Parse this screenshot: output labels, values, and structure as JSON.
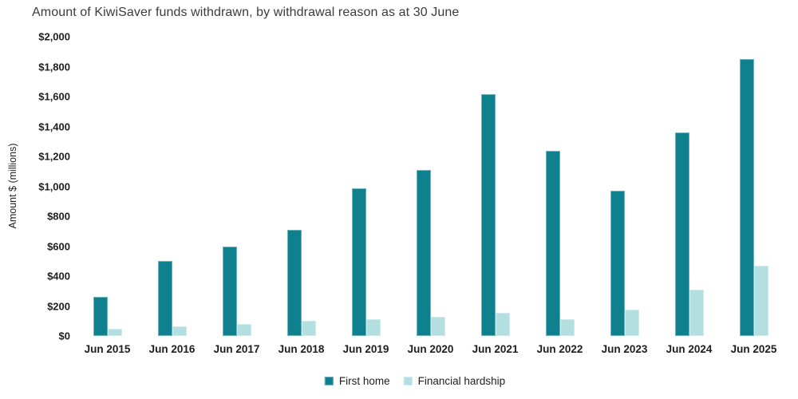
{
  "title": "Amount of KiwiSaver funds withdrawn, by withdrawal reason as at 30 June",
  "colors": {
    "background": "#ffffff",
    "first_home": "#0f818e",
    "first_home_border": "#6db5bf",
    "financial_hardship": "#b4dfe0",
    "financial_hardship_border": "#cfebeb",
    "text": "#1e1e1e",
    "title_text": "#3c3c3c"
  },
  "chart_data": {
    "type": "bar",
    "title": "Amount of KiwiSaver funds withdrawn, by withdrawal reason as at 30 June",
    "xlabel": "",
    "ylabel": "Amount $ (millions)",
    "ylim": [
      0,
      2000
    ],
    "grid": false,
    "legend_position": "bottom",
    "categories": [
      "Jun 2015",
      "Jun 2016",
      "Jun 2017",
      "Jun 2018",
      "Jun 2019",
      "Jun 2020",
      "Jun 2021",
      "Jun 2022",
      "Jun 2023",
      "Jun 2024",
      "Jun 2025"
    ],
    "series": [
      {
        "name": "First home",
        "color": "#0f818e",
        "border_color": "#6db5bf",
        "values": [
          260,
          500,
          600,
          710,
          985,
          1110,
          1615,
          1240,
          970,
          1360,
          1850
        ]
      },
      {
        "name": "Financial hardship",
        "color": "#b4dfe0",
        "border_color": "#cfebeb",
        "values": [
          50,
          65,
          80,
          100,
          110,
          130,
          155,
          110,
          175,
          310,
          470
        ]
      }
    ],
    "ytick_values": [
      0,
      200,
      400,
      600,
      800,
      1000,
      1200,
      1400,
      1600,
      1800,
      2000
    ],
    "ytick_labels": [
      "$0",
      "$200",
      "$400",
      "$600",
      "$800",
      "$1,000",
      "$1,200",
      "$1,400",
      "$1,600",
      "$1,800",
      "$2,000"
    ]
  }
}
